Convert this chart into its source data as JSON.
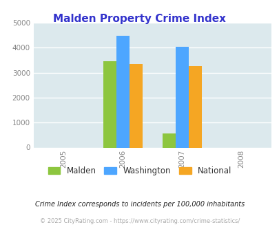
{
  "title": "Malden Property Crime Index",
  "title_color": "#3333cc",
  "years": [
    2005,
    2006,
    2007,
    2008
  ],
  "bar_groups": {
    "2006": {
      "Malden": 3450,
      "Washington": 4480,
      "National": 3360
    },
    "2007": {
      "Malden": 570,
      "Washington": 4030,
      "National": 3260
    }
  },
  "bar_colors": {
    "Malden": "#8dc63f",
    "Washington": "#4da6ff",
    "National": "#f5a623"
  },
  "ylim": [
    0,
    5000
  ],
  "yticks": [
    0,
    1000,
    2000,
    3000,
    4000,
    5000
  ],
  "xlim": [
    2004.5,
    2008.5
  ],
  "bar_width": 0.22,
  "background_color": "#dce9ed",
  "footnote1": "Crime Index corresponds to incidents per 100,000 inhabitants",
  "footnote2": "© 2025 CityRating.com - https://www.cityrating.com/crime-statistics/",
  "grid_color": "#ffffff",
  "axis_label_color": "#888888"
}
